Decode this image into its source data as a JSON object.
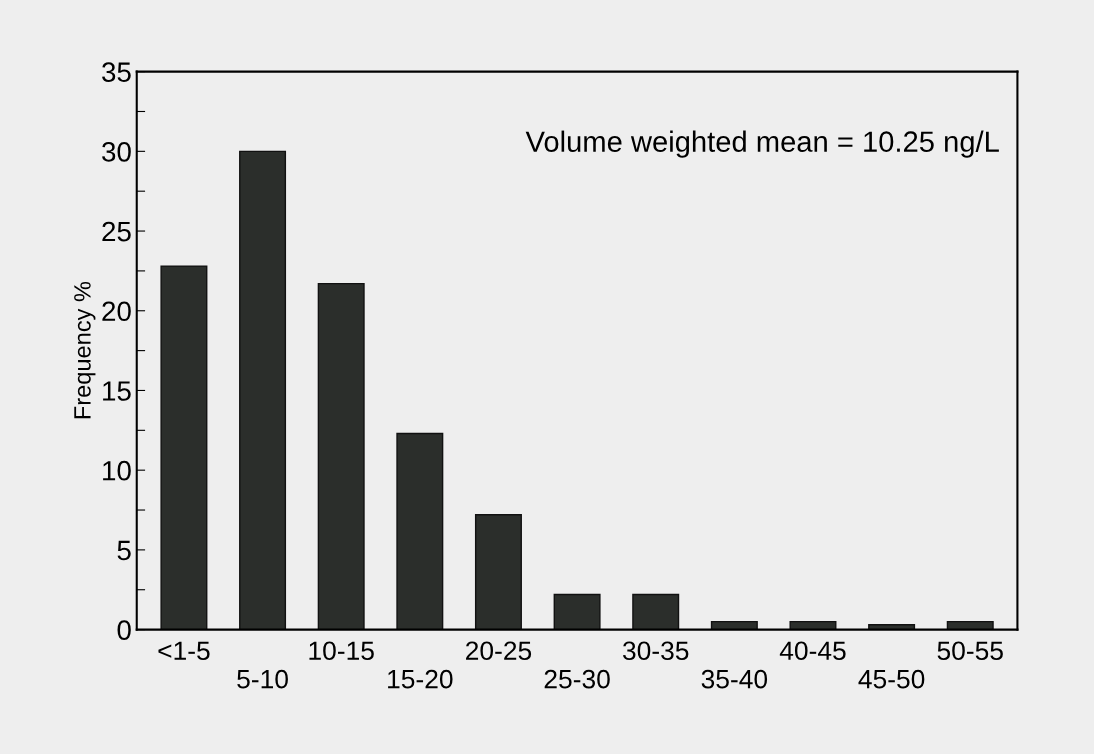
{
  "chart_data": {
    "type": "bar",
    "ylabel": "Frequency %",
    "categories": [
      "<1-5",
      "5-10",
      "10-15",
      "15-20",
      "20-25",
      "25-30",
      "30-35",
      "35-40",
      "40-45",
      "45-50",
      "50-55"
    ],
    "values": [
      22.8,
      30.0,
      21.7,
      12.3,
      7.2,
      2.2,
      2.2,
      0.5,
      0.5,
      0.3,
      0.5
    ],
    "color": "#2b2e2b",
    "ylim": [
      0,
      35
    ],
    "yticks": [
      0,
      {
        "value": 2.5,
        "label": null
      },
      5,
      {
        "value": 7.5,
        "label": null
      },
      10,
      {
        "value": 12.5,
        "label": null
      },
      15,
      {
        "value": 17.5,
        "label": null
      },
      20,
      {
        "value": 22.5,
        "label": null
      },
      25,
      {
        "value": 27.5,
        "label": null
      },
      30,
      {
        "value": 32.5,
        "label": null
      },
      35
    ],
    "annotations": [
      "Volume weighted mean = 10.25 ng/L"
    ],
    "grid": false
  }
}
